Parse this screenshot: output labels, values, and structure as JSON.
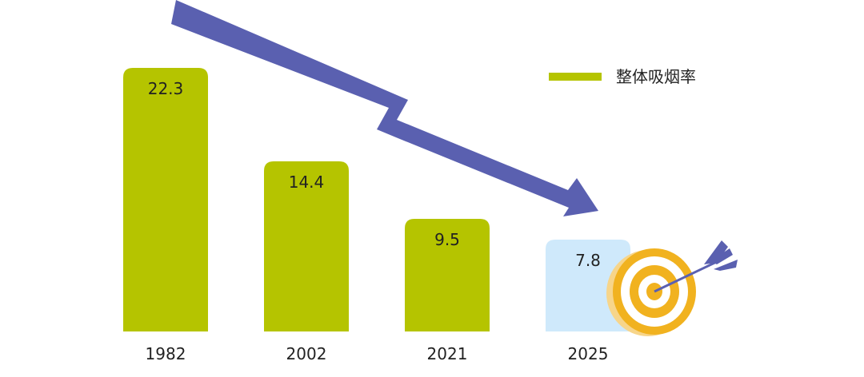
{
  "chart_data": {
    "type": "bar",
    "categories": [
      "1982",
      "2002",
      "2021",
      "2025"
    ],
    "series": [
      {
        "name": "整体吸烟率",
        "values": [
          22.3,
          14.4,
          9.5,
          7.8
        ]
      }
    ],
    "value_labels": [
      "22.3",
      "14.4",
      "9.5",
      "7.8"
    ],
    "projected_categories": [
      "2025"
    ],
    "ylim": [
      0,
      22.3
    ],
    "grid": false,
    "legend_position": "top-right",
    "colors": {
      "actual": "#b5c400",
      "target": "#cfe9fb",
      "arrow": "#5a60b0",
      "target_ring": "#f1b21f",
      "target_ring_alt": "#ffffff",
      "dart": "#5a60b0"
    }
  },
  "legend": {
    "label": "整体吸烟率"
  },
  "icons": {
    "trend": "down-arrow-icon",
    "goal": "target-icon"
  }
}
